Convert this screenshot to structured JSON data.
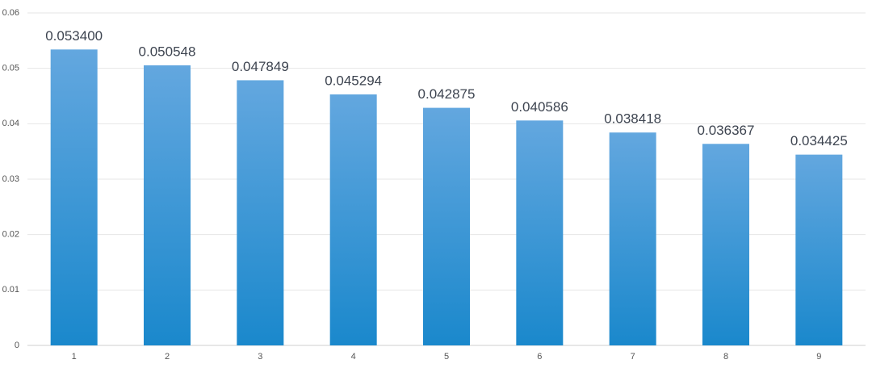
{
  "chart_data": {
    "type": "bar",
    "categories": [
      "1",
      "2",
      "3",
      "4",
      "5",
      "6",
      "7",
      "8",
      "9"
    ],
    "values": [
      0.0534,
      0.050548,
      0.047849,
      0.045294,
      0.042875,
      0.040586,
      0.038418,
      0.036367,
      0.034425
    ],
    "value_labels": [
      "0.053400",
      "0.050548",
      "0.047849",
      "0.045294",
      "0.042875",
      "0.040586",
      "0.038418",
      "0.036367",
      "0.034425"
    ],
    "color": [
      "#63a7df",
      "#1a88cc"
    ],
    "ylim": [
      0,
      0.06
    ],
    "yticks": [
      0,
      0.01,
      0.02,
      0.03,
      0.04,
      0.05,
      0.06
    ],
    "grid": true
  }
}
